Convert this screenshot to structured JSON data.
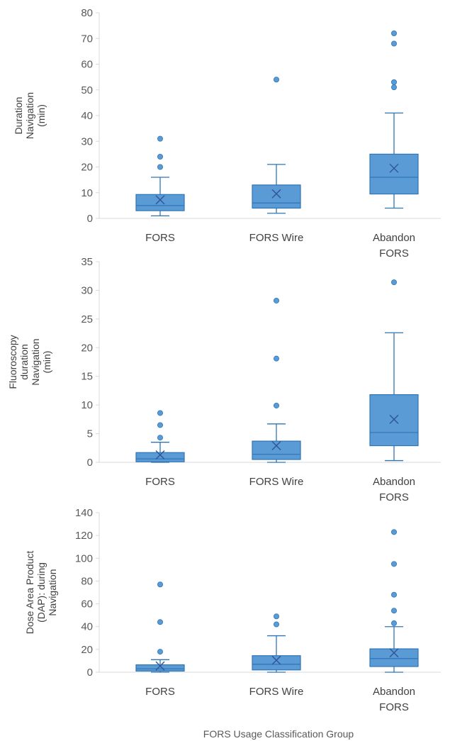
{
  "colors": {
    "box_fill": "#5B9BD5",
    "box_stroke": "#2E75B6",
    "whisker": "#2E75B6",
    "outlier": "#5B9BD5",
    "axis": "#D9D9D9",
    "text": "#595959"
  },
  "x_axis_label": "FORS Usage Classification Group",
  "chart_data": [
    {
      "type": "box",
      "categories": [
        [
          "FORS"
        ],
        [
          "FORS Wire"
        ],
        [
          "Abandon",
          "FORS"
        ]
      ],
      "ylabel": [
        "Duration",
        "Navigation",
        "(min)"
      ],
      "ylim": [
        0,
        80
      ],
      "yticks": [
        0,
        10,
        20,
        30,
        40,
        50,
        60,
        70,
        80
      ],
      "boxes": [
        {
          "min": 1,
          "q1": 3,
          "median": 5,
          "q3": 9.3,
          "max": 16,
          "mean": 7.2,
          "outliers": [
            20,
            24,
            31
          ]
        },
        {
          "min": 2,
          "q1": 4,
          "median": 6,
          "q3": 13,
          "max": 21,
          "mean": 9.6,
          "outliers": [
            54
          ]
        },
        {
          "min": 4,
          "q1": 9.5,
          "median": 16,
          "q3": 25,
          "max": 41,
          "mean": 19.5,
          "outliers": [
            51,
            53,
            68,
            72
          ]
        }
      ]
    },
    {
      "type": "box",
      "categories": [
        [
          "FORS"
        ],
        [
          "FORS Wire"
        ],
        [
          "Abandon",
          "FORS"
        ]
      ],
      "ylabel": [
        "Fluoroscopy",
        "duration",
        "Navigation",
        "(min)"
      ],
      "ylim": [
        0,
        35
      ],
      "yticks": [
        0,
        5,
        10,
        15,
        20,
        25,
        30,
        35
      ],
      "boxes": [
        {
          "min": 0,
          "q1": 0.1,
          "median": 0.6,
          "q3": 1.7,
          "max": 3.5,
          "mean": 1.3,
          "outliers": [
            4.3,
            6.5,
            8.6
          ]
        },
        {
          "min": 0,
          "q1": 0.5,
          "median": 1.4,
          "q3": 3.7,
          "max": 6.7,
          "mean": 2.9,
          "outliers": [
            9.9,
            18.1,
            28.2
          ]
        },
        {
          "min": 0.3,
          "q1": 2.9,
          "median": 5.2,
          "q3": 11.8,
          "max": 22.6,
          "mean": 7.5,
          "outliers": [
            31.4
          ]
        }
      ]
    },
    {
      "type": "box",
      "categories": [
        [
          "FORS"
        ],
        [
          "FORS Wire"
        ],
        [
          "Abandon",
          "FORS"
        ]
      ],
      "ylabel": [
        "Dose Area Product",
        "(DAP): during",
        "Navigation"
      ],
      "ylim": [
        0,
        140
      ],
      "yticks": [
        0,
        20,
        40,
        60,
        80,
        100,
        120,
        140
      ],
      "boxes": [
        {
          "min": 0,
          "q1": 1,
          "median": 3,
          "q3": 6.5,
          "max": 11,
          "mean": 5.5,
          "outliers": [
            18,
            44,
            77
          ]
        },
        {
          "min": 0,
          "q1": 2,
          "median": 7,
          "q3": 14.5,
          "max": 32,
          "mean": 10.5,
          "outliers": [
            42,
            49
          ]
        },
        {
          "min": 0,
          "q1": 5,
          "median": 12,
          "q3": 20.5,
          "max": 40,
          "mean": 17,
          "outliers": [
            43,
            54,
            68,
            95,
            123
          ]
        }
      ]
    }
  ]
}
